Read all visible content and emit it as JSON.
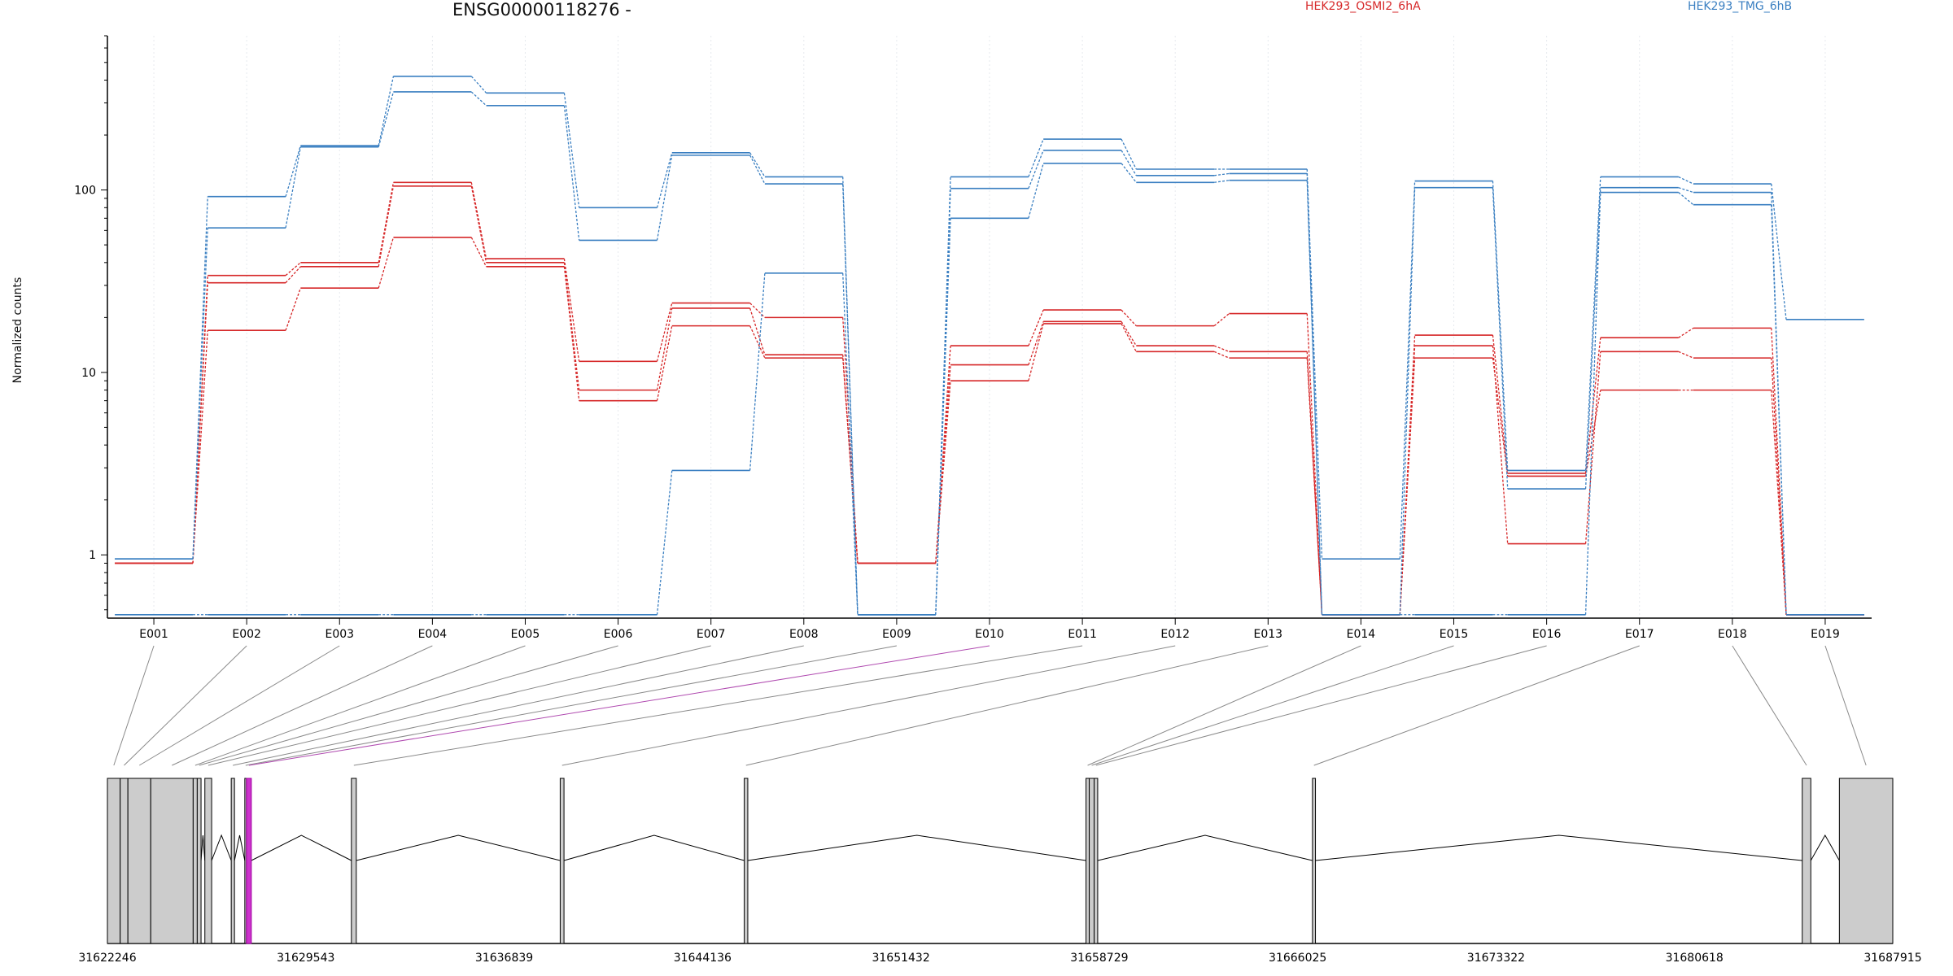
{
  "chart_data": {
    "type": "line",
    "title": "ENSG00000118276 -",
    "ylabel": "Normalized counts",
    "yscale": "log",
    "y_ticks": [
      1,
      10,
      100
    ],
    "y_tick_labels": [
      "1",
      "10",
      "100"
    ],
    "ylim": [
      0.45,
      700
    ],
    "grid": true,
    "legend_placement": "top",
    "categories": [
      "E001",
      "E002",
      "E003",
      "E004",
      "E005",
      "E006",
      "E007",
      "E008",
      "E009",
      "E010",
      "E011",
      "E012",
      "E013",
      "E014",
      "E015",
      "E016",
      "E017",
      "E018",
      "E019"
    ],
    "series": [
      {
        "name": "HEK293_OSMI2_6hA",
        "color": "#d62728",
        "values": [
          0.9,
          34,
          40,
          110,
          42,
          11.5,
          24,
          20,
          0.9,
          14,
          22,
          18,
          21,
          0.47,
          16,
          2.8,
          15.5,
          17.5,
          0.47
        ]
      },
      {
        "name": "HEK293_OSMI2_6hA",
        "color": "#d62728",
        "values": [
          0.9,
          31,
          38,
          105,
          40,
          8,
          22.5,
          12.5,
          0.9,
          11,
          19,
          14,
          13,
          0.47,
          14,
          1.15,
          13,
          12,
          0.47
        ]
      },
      {
        "name": "HEK293_OSMI2_6hA",
        "color": "#d62728",
        "values": [
          0.9,
          17,
          29,
          55,
          38,
          7,
          18,
          12,
          0.9,
          9,
          18.5,
          13,
          12,
          0.47,
          12,
          2.7,
          8,
          8,
          0.47
        ]
      },
      {
        "name": "HEK293_TMG_6hB",
        "color": "#3a7fc1",
        "values": [
          0.95,
          92,
          175,
          420,
          340,
          80,
          160,
          118,
          0.47,
          118,
          190,
          130,
          130,
          0.95,
          112,
          2.9,
          118,
          108,
          19.5
        ]
      },
      {
        "name": "HEK293_TMG_6hB",
        "color": "#3a7fc1",
        "values": [
          0.95,
          62,
          172,
          345,
          290,
          53,
          155,
          108,
          0.47,
          102,
          165,
          120,
          123,
          0.47,
          103,
          2.3,
          103,
          97,
          0.47
        ]
      },
      {
        "name": "HEK293_TMG_6hB",
        "color": "#3a7fc1",
        "values": [
          0.47,
          0.47,
          0.47,
          0.47,
          0.47,
          0.47,
          2.9,
          35,
          0.47,
          70,
          140,
          110,
          113,
          0.47,
          0.47,
          0.47,
          97,
          83,
          0.47
        ]
      }
    ],
    "highlighted_exon": "E010",
    "gene_model": {
      "coordinate_labels": [
        "31622246",
        "31629543",
        "31636839",
        "31644136",
        "31651432",
        "31658729",
        "31666025",
        "31673322",
        "31680618",
        "31687915"
      ],
      "coord_start": 31622246,
      "coord_end": 31687915,
      "exons": [
        {
          "id": "E001",
          "start": 31622246,
          "end": 31622716
        },
        {
          "id": "E002",
          "start": 31622716,
          "end": 31623000
        },
        {
          "id": "E003",
          "start": 31623000,
          "end": 31623840
        },
        {
          "id": "E004",
          "start": 31623840,
          "end": 31625400
        },
        {
          "id": "E005",
          "start": 31625400,
          "end": 31625550
        },
        {
          "id": "E006",
          "start": 31625550,
          "end": 31625690
        },
        {
          "id": "E007",
          "start": 31625830,
          "end": 31626080
        },
        {
          "id": "E008",
          "start": 31626800,
          "end": 31626920
        },
        {
          "id": "E009",
          "start": 31627300,
          "end": 31627360
        },
        {
          "id": "E010",
          "start": 31627360,
          "end": 31627540
        },
        {
          "id": "E011",
          "start": 31631220,
          "end": 31631400
        },
        {
          "id": "E012",
          "start": 31638900,
          "end": 31639040
        },
        {
          "id": "E013",
          "start": 31645670,
          "end": 31645800
        },
        {
          "id": "E014",
          "start": 31658240,
          "end": 31658360
        },
        {
          "id": "E015",
          "start": 31658360,
          "end": 31658540
        },
        {
          "id": "E016",
          "start": 31658540,
          "end": 31658670
        },
        {
          "id": "E017",
          "start": 31666570,
          "end": 31666680
        },
        {
          "id": "E018",
          "start": 31684585,
          "end": 31684900
        },
        {
          "id": "E019",
          "start": 31685950,
          "end": 31687915
        }
      ]
    }
  }
}
